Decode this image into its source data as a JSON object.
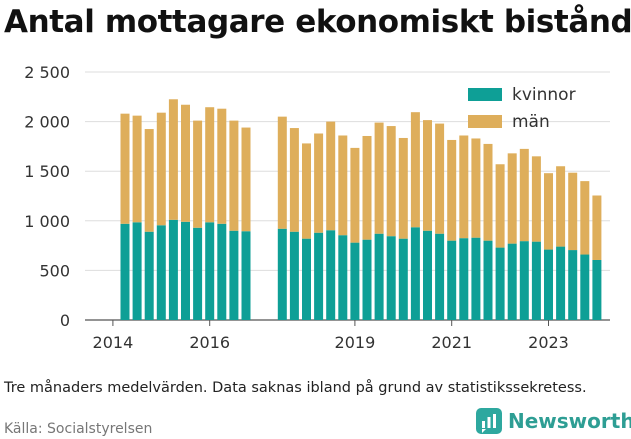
{
  "title": "Antal mottagare ekonomiskt bistånd",
  "note": "Tre månaders medelvärden. Data saknas ibland på grund av statistikssekretess.",
  "source": "Källa: Socialstyrelsen",
  "brand": {
    "name": "Newsworthy",
    "color": "#2e9e94",
    "icon": "bar-chart-icon"
  },
  "chart_data": {
    "type": "bar",
    "stacked": true,
    "title": "",
    "xlabel": "",
    "ylabel": "",
    "ylim": [
      0,
      2500
    ],
    "yticks": [
      0,
      500,
      1000,
      1500,
      2000,
      2500
    ],
    "ytick_labels": [
      "0",
      "500",
      "1 000",
      "1 500",
      "2 000",
      "2 500"
    ],
    "xticks": [
      2014,
      2016,
      2019,
      2021,
      2023
    ],
    "xtick_labels": [
      "2014",
      "2016",
      "2019",
      "2021",
      "2023"
    ],
    "grid": true,
    "legend_position": "top-right",
    "x": [
      "2014-Q2",
      "2014-Q3",
      "2014-Q4",
      "2015-Q1",
      "2015-Q2",
      "2015-Q3",
      "2015-Q4",
      "2016-Q1",
      "2016-Q2",
      "2016-Q3",
      "2016-Q4",
      "2017-Q1",
      "2017-Q3",
      "2017-Q4",
      "2018-Q1",
      "2018-Q2",
      "2018-Q3",
      "2018-Q4",
      "2019-Q1",
      "2019-Q2",
      "2019-Q3",
      "2019-Q4",
      "2020-Q1",
      "2020-Q2",
      "2020-Q3",
      "2020-Q4",
      "2021-Q1",
      "2021-Q2",
      "2021-Q3",
      "2021-Q4",
      "2022-Q1",
      "2022-Q2",
      "2022-Q3",
      "2022-Q4",
      "2023-Q1",
      "2023-Q2",
      "2023-Q3",
      "2023-Q4",
      "2024-Q1"
    ],
    "series": [
      {
        "name": "kvinnor",
        "color": "#0e9f96",
        "values": [
          970,
          985,
          890,
          955,
          1010,
          990,
          930,
          985,
          970,
          900,
          895,
          null,
          920,
          890,
          820,
          880,
          905,
          855,
          780,
          810,
          870,
          845,
          820,
          935,
          900,
          870,
          800,
          825,
          830,
          800,
          730,
          770,
          795,
          790,
          710,
          740,
          705,
          660,
          605
        ]
      },
      {
        "name": "män",
        "color": "#deae5b",
        "values": [
          1110,
          1075,
          1035,
          1135,
          1215,
          1180,
          1080,
          1160,
          1160,
          1110,
          1045,
          null,
          1130,
          1045,
          960,
          1000,
          1095,
          1005,
          955,
          1045,
          1120,
          1110,
          1015,
          1160,
          1115,
          1110,
          1015,
          1035,
          1000,
          975,
          840,
          910,
          930,
          860,
          770,
          810,
          780,
          740,
          650
        ]
      }
    ]
  }
}
